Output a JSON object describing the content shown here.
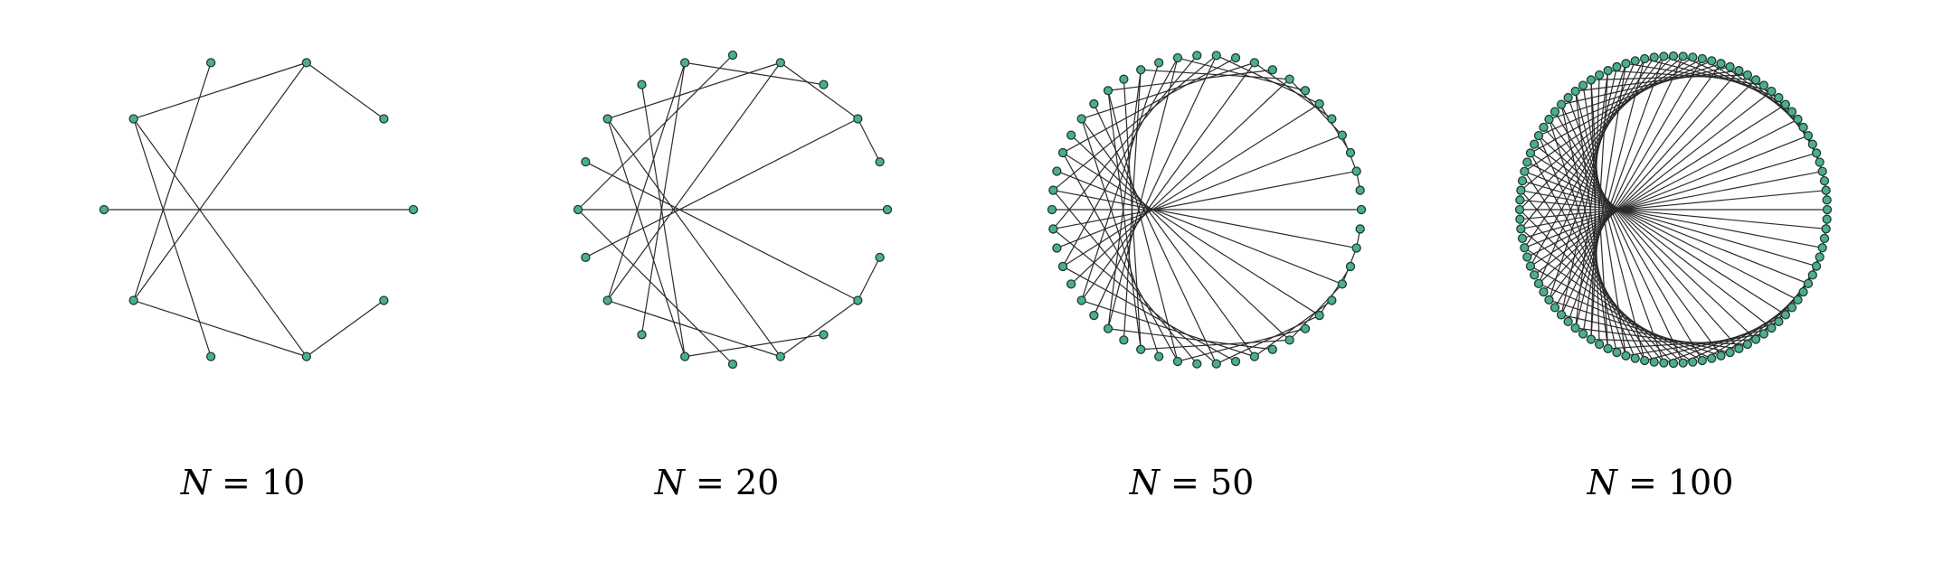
{
  "figure": {
    "panels": [
      {
        "n": 10,
        "caption_var": "N",
        "caption_eq": " = ",
        "caption_value": "10"
      },
      {
        "n": 20,
        "caption_var": "N",
        "caption_eq": " = ",
        "caption_value": "20"
      },
      {
        "n": 50,
        "caption_var": "N",
        "caption_eq": " = ",
        "caption_value": "50"
      },
      {
        "n": 100,
        "caption_var": "N",
        "caption_eq": " = ",
        "caption_value": "100"
      }
    ],
    "colors": {
      "node_fill": "#4caf8a",
      "node_stroke": "#1e3b30",
      "edge": "#2b2b2b"
    }
  }
}
